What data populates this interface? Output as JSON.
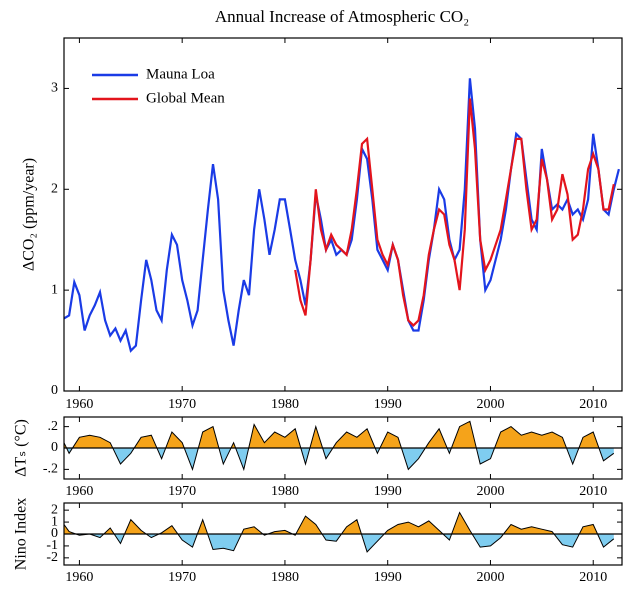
{
  "chart_data": [
    {
      "type": "line",
      "title": "Annual Increase of Atmospheric CO₂",
      "ylabel": "ΔCO₂ (ppm/year)",
      "xlim": [
        1958.5,
        2012.8
      ],
      "ylim": [
        0,
        3.5
      ],
      "xticks": [
        1960,
        1970,
        1980,
        1990,
        2000,
        2010
      ],
      "yticks": [
        0,
        1,
        2,
        3
      ],
      "legend": "upper left",
      "series": [
        {
          "name": "Mauna Loa",
          "color": "#1a3be6",
          "x": [
            1958.5,
            1959,
            1959.5,
            1960,
            1960.5,
            1961,
            1961.5,
            1962,
            1962.5,
            1963,
            1963.5,
            1964,
            1964.5,
            1965,
            1965.5,
            1966,
            1966.5,
            1967,
            1967.5,
            1968,
            1968.5,
            1969,
            1969.5,
            1970,
            1970.5,
            1971,
            1971.5,
            1972,
            1972.5,
            1973,
            1973.5,
            1974,
            1974.5,
            1975,
            1975.5,
            1976,
            1976.5,
            1977,
            1977.5,
            1978,
            1978.5,
            1979,
            1979.5,
            1980,
            1980.5,
            1981,
            1981.5,
            1982,
            1982.5,
            1983,
            1983.5,
            1984,
            1984.5,
            1985,
            1985.5,
            1986,
            1986.5,
            1987,
            1987.5,
            1988,
            1988.5,
            1989,
            1989.5,
            1990,
            1990.5,
            1991,
            1991.5,
            1992,
            1992.5,
            1993,
            1993.5,
            1994,
            1994.5,
            1995,
            1995.5,
            1996,
            1996.5,
            1997,
            1997.5,
            1998,
            1998.5,
            1999,
            1999.5,
            2000,
            2000.5,
            2001,
            2001.5,
            2002,
            2002.5,
            2003,
            2003.5,
            2004,
            2004.5,
            2005,
            2005.5,
            2006,
            2006.5,
            2007,
            2007.5,
            2008,
            2008.5,
            2009,
            2009.5,
            2010,
            2010.5,
            2011,
            2011.5,
            2012,
            2012.5
          ],
          "values": [
            0.72,
            0.75,
            1.08,
            0.95,
            0.6,
            0.75,
            0.85,
            0.98,
            0.7,
            0.55,
            0.62,
            0.5,
            0.6,
            0.4,
            0.45,
            0.9,
            1.3,
            1.1,
            0.8,
            0.7,
            1.2,
            1.55,
            1.45,
            1.1,
            0.9,
            0.65,
            0.8,
            1.3,
            1.8,
            2.25,
            1.9,
            1.0,
            0.7,
            0.45,
            0.8,
            1.1,
            0.95,
            1.6,
            2.0,
            1.7,
            1.35,
            1.6,
            1.9,
            1.9,
            1.6,
            1.3,
            1.1,
            0.85,
            1.3,
            1.95,
            1.7,
            1.4,
            1.5,
            1.35,
            1.4,
            1.35,
            1.5,
            1.9,
            2.4,
            2.3,
            1.9,
            1.4,
            1.3,
            1.2,
            1.45,
            1.3,
            1.0,
            0.7,
            0.6,
            0.6,
            0.9,
            1.3,
            1.6,
            2.0,
            1.9,
            1.5,
            1.3,
            1.4,
            2.0,
            3.1,
            2.6,
            1.5,
            1.0,
            1.1,
            1.3,
            1.5,
            1.8,
            2.2,
            2.55,
            2.5,
            2.1,
            1.7,
            1.6,
            2.4,
            2.1,
            1.8,
            1.85,
            1.8,
            1.9,
            1.75,
            1.8,
            1.7,
            1.9,
            2.55,
            2.2,
            1.8,
            1.75,
            2.0,
            2.2
          ]
        },
        {
          "name": "Global Mean",
          "color": "#e3141c",
          "x": [
            1981,
            1981.5,
            1982,
            1982.5,
            1983,
            1983.5,
            1984,
            1984.5,
            1985,
            1985.5,
            1986,
            1986.5,
            1987,
            1987.5,
            1988,
            1988.5,
            1989,
            1989.5,
            1990,
            1990.5,
            1991,
            1991.5,
            1992,
            1992.5,
            1993,
            1993.5,
            1994,
            1994.5,
            1995,
            1995.5,
            1996,
            1996.5,
            1997,
            1997.5,
            1998,
            1998.5,
            1999,
            1999.5,
            2000,
            2000.5,
            2001,
            2001.5,
            2002,
            2002.5,
            2003,
            2003.5,
            2004,
            2004.5,
            2005,
            2005.5,
            2006,
            2006.5,
            2007,
            2007.5,
            2008,
            2008.5,
            2009,
            2009.5,
            2010,
            2010.5,
            2011,
            2011.5,
            2012
          ],
          "values": [
            1.2,
            0.9,
            0.75,
            1.3,
            2.0,
            1.6,
            1.4,
            1.55,
            1.45,
            1.4,
            1.35,
            1.6,
            2.0,
            2.45,
            2.5,
            2.0,
            1.5,
            1.35,
            1.25,
            1.45,
            1.3,
            0.95,
            0.7,
            0.65,
            0.7,
            0.95,
            1.35,
            1.6,
            1.8,
            1.75,
            1.45,
            1.3,
            1.0,
            1.6,
            2.9,
            2.4,
            1.5,
            1.2,
            1.3,
            1.45,
            1.6,
            1.9,
            2.2,
            2.5,
            2.5,
            2.0,
            1.6,
            1.7,
            2.3,
            2.1,
            1.7,
            1.8,
            2.15,
            1.95,
            1.5,
            1.55,
            1.8,
            2.2,
            2.35,
            2.2,
            1.8,
            1.8,
            2.05
          ]
        }
      ]
    },
    {
      "type": "area",
      "ylabel": "ΔTₛ (°C)",
      "xlim": [
        1958.5,
        2012.8
      ],
      "ylim": [
        -0.29,
        0.29
      ],
      "xticks": [
        1960,
        1970,
        1980,
        1990,
        2000,
        2010
      ],
      "yticks": [
        {
          "value": -0.2,
          "label": "-.2"
        },
        0,
        {
          "value": 0.2,
          "label": ".2"
        }
      ],
      "positive_color": "#f5a31a",
      "negative_color": "#7fcdf0",
      "x": [
        1958.5,
        1959,
        1960,
        1961,
        1962,
        1963,
        1964,
        1965,
        1966,
        1967,
        1968,
        1969,
        1970,
        1971,
        1972,
        1973,
        1974,
        1975,
        1976,
        1977,
        1978,
        1979,
        1980,
        1981,
        1982,
        1983,
        1984,
        1985,
        1986,
        1987,
        1988,
        1989,
        1990,
        1991,
        1992,
        1993,
        1994,
        1995,
        1996,
        1997,
        1998,
        1999,
        2000,
        2001,
        2002,
        2003,
        2004,
        2005,
        2006,
        2007,
        2008,
        2009,
        2010,
        2011,
        2012
      ],
      "values": [
        0.05,
        -0.05,
        0.1,
        0.12,
        0.1,
        0.05,
        -0.15,
        -0.05,
        0.1,
        0.12,
        -0.1,
        0.15,
        0.05,
        -0.2,
        0.15,
        0.2,
        -0.15,
        0.05,
        -0.2,
        0.22,
        0.05,
        0.15,
        0.1,
        0.18,
        -0.15,
        0.2,
        -0.1,
        0.05,
        0.15,
        0.1,
        0.18,
        -0.05,
        0.15,
        0.1,
        -0.2,
        -0.1,
        0.05,
        0.18,
        -0.05,
        0.2,
        0.25,
        -0.15,
        -0.1,
        0.15,
        0.2,
        0.12,
        0.15,
        0.12,
        0.15,
        0.1,
        -0.15,
        0.1,
        0.15,
        -0.12,
        -0.05
      ]
    },
    {
      "type": "area",
      "ylabel": "Nino Index",
      "xlim": [
        1958.5,
        2012.8
      ],
      "ylim": [
        -2.6,
        2.6
      ],
      "xticks": [
        1960,
        1970,
        1980,
        1990,
        2000,
        2010
      ],
      "yticks": [
        -2,
        -1,
        0,
        1,
        2
      ],
      "positive_color": "#f5a31a",
      "negative_color": "#7fcdf0",
      "x": [
        1958.5,
        1959,
        1960,
        1961,
        1962,
        1963,
        1964,
        1965,
        1966,
        1967,
        1968,
        1969,
        1970,
        1971,
        1972,
        1973,
        1974,
        1975,
        1976,
        1977,
        1978,
        1979,
        1980,
        1981,
        1982,
        1983,
        1984,
        1985,
        1986,
        1987,
        1988,
        1989,
        1990,
        1991,
        1992,
        1993,
        1994,
        1995,
        1996,
        1997,
        1998,
        1999,
        2000,
        2001,
        2002,
        2003,
        2004,
        2005,
        2006,
        2007,
        2008,
        2009,
        2010,
        2011,
        2012
      ],
      "values": [
        0.8,
        0.2,
        -0.1,
        0,
        -0.3,
        0.5,
        -0.8,
        1.2,
        0.3,
        -0.3,
        0.1,
        0.7,
        -0.5,
        -1.1,
        1.2,
        -1.3,
        -1.2,
        -1.4,
        0.4,
        0.6,
        -0.1,
        0.2,
        0.3,
        -0.1,
        1.5,
        0.8,
        -0.5,
        -0.6,
        0.6,
        1.2,
        -1.5,
        -0.6,
        0.3,
        0.8,
        1.0,
        0.6,
        1.1,
        0.3,
        -0.5,
        1.8,
        0.3,
        -1.1,
        -1.0,
        -0.3,
        0.8,
        0.4,
        0.6,
        0.4,
        0.2,
        -0.9,
        -1.1,
        0.6,
        0.8,
        -1.1,
        -0.4
      ]
    }
  ]
}
